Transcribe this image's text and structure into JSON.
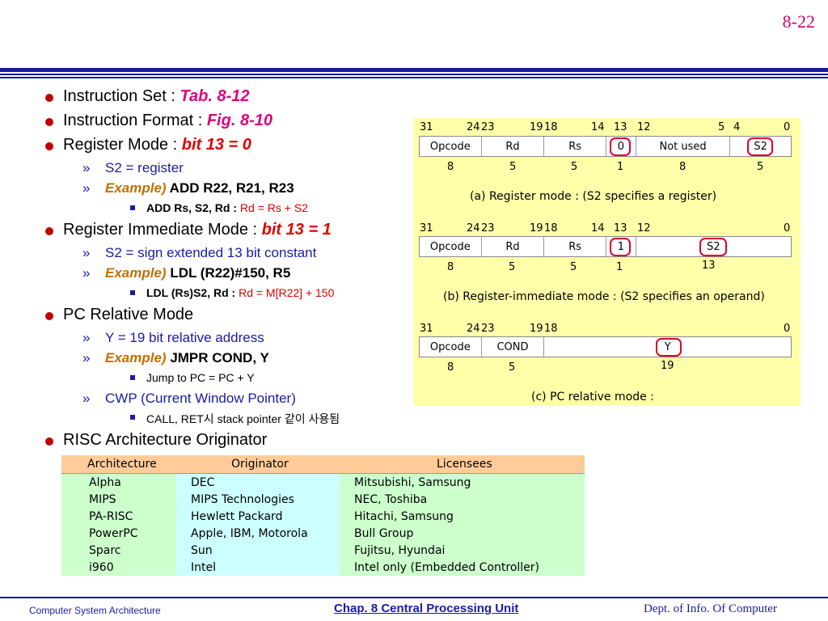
{
  "page_number": "8-22",
  "bullets": {
    "instruction_set": {
      "text": "Instruction Set : ",
      "ref": "Tab. 8-12"
    },
    "instruction_format": {
      "text": "Instruction Format : ",
      "ref": "Fig. 8-10"
    },
    "register_mode": {
      "text": "Register Mode : ",
      "ref": "bit 13 = 0"
    },
    "rm_s2": "S2 = register",
    "rm_example_label": "Example)",
    "rm_example": " ADD  R22, R21, R23",
    "rm_detail_label": "ADD  Rs, S2, Rd : ",
    "rm_detail": "Rd = Rs + S2",
    "register_immediate": {
      "text": "Register Immediate Mode : ",
      "ref": "bit 13 = 1"
    },
    "ri_s2": "S2 = sign extended 13 bit constant",
    "ri_example_label": "Example)",
    "ri_example": " LDL  (R22)#150, R5",
    "ri_detail_label": "LDL   (Rs)S2, Rd : ",
    "ri_detail": "Rd = M[R22] + 150",
    "pc_relative": "PC Relative Mode",
    "pc_y": "Y = 19 bit relative address",
    "pc_example_label": "Example)",
    "pc_example": " JMPR  COND, Y",
    "pc_detail": "Jump to PC = PC + Y",
    "cwp": "CWP (Current Window Pointer)",
    "cwp_detail": "CALL, RET시 stack pointer 같이 사용됨",
    "risc": "RISC Architecture Originator"
  },
  "formats": [
    {
      "bits": [
        "31",
        "24",
        "23",
        "19",
        "18",
        "14",
        "13",
        "12",
        "5",
        "4",
        "0"
      ],
      "fields": [
        "Opcode",
        "Rd",
        "Rs",
        "0",
        "Not used",
        "S2"
      ],
      "widths": [
        "8",
        "5",
        "5",
        "1",
        "8",
        "5"
      ],
      "caption": "(a) Register mode : (S2 specifies a register)"
    },
    {
      "bits": [
        "31",
        "24",
        "23",
        "19",
        "18",
        "14",
        "13",
        "12",
        "0"
      ],
      "fields": [
        "Opcode",
        "Rd",
        "Rs",
        "1",
        "S2"
      ],
      "widths": [
        "8",
        "5",
        "5",
        "1",
        "13"
      ],
      "caption": "(b) Register-immediate mode : (S2 specifies an operand)"
    },
    {
      "bits": [
        "31",
        "24",
        "23",
        "19",
        "18",
        "0"
      ],
      "fields": [
        "Opcode",
        "COND",
        "Y"
      ],
      "widths": [
        "8",
        "5",
        "19"
      ],
      "caption": "(c) PC relative mode  :"
    }
  ],
  "table": {
    "headers": [
      "Architecture",
      "Originator",
      "Licensees"
    ],
    "rows": [
      [
        "Alpha",
        "DEC",
        "Mitsubishi, Samsung"
      ],
      [
        "MIPS",
        "MIPS Technologies",
        "NEC, Toshiba"
      ],
      [
        "PA-RISC",
        "Hewlett Packard",
        "Hitachi, Samsung"
      ],
      [
        "PowerPC",
        "Apple, IBM, Motorola",
        "Bull Group"
      ],
      [
        "Sparc",
        "Sun",
        "Fujitsu, Hyundai"
      ],
      [
        "i960",
        "Intel",
        "Intel only (Embedded Controller)"
      ]
    ]
  },
  "footer": {
    "left": "Computer System Architecture",
    "center": "Chap. 8  Central Processing Unit",
    "right": "Dept. of Info. Of Computer"
  }
}
